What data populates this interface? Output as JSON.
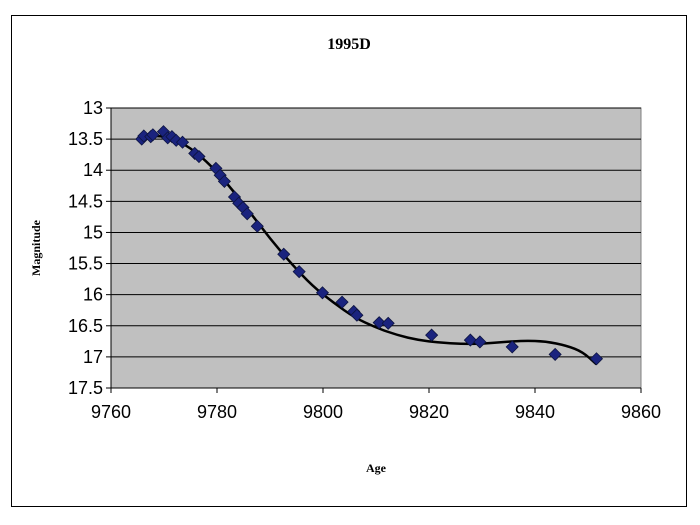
{
  "chart_data": {
    "type": "scatter",
    "title": "1995D",
    "xlabel": "Age",
    "ylabel": "Magnitude",
    "xlim": [
      9760,
      9860
    ],
    "ylim": [
      13,
      17.5
    ],
    "y_inverted": true,
    "xticks": [
      "9760",
      "9780",
      "9800",
      "9820",
      "9840",
      "9860"
    ],
    "yticks": [
      "13",
      "13.5",
      "14",
      "14.5",
      "15",
      "15.5",
      "16",
      "16.5",
      "17",
      "17.5"
    ],
    "grid": "horizontal",
    "plot_background": "#c0c0c0",
    "marker_color": "#1a237e",
    "trend_color": "#000000",
    "series": [
      {
        "points": [
          [
            9765.8,
            13.5
          ],
          [
            9766.2,
            13.45
          ],
          [
            9767.5,
            13.46
          ],
          [
            9767.9,
            13.43
          ],
          [
            9769.9,
            13.38
          ],
          [
            9770.7,
            13.48
          ],
          [
            9771.5,
            13.46
          ],
          [
            9772.3,
            13.52
          ],
          [
            9773.5,
            13.55
          ],
          [
            9775.8,
            13.73
          ],
          [
            9776.6,
            13.78
          ],
          [
            9779.8,
            13.97
          ],
          [
            9780.6,
            14.08
          ],
          [
            9781.4,
            14.18
          ],
          [
            9783.3,
            14.43
          ],
          [
            9784.1,
            14.53
          ],
          [
            9784.9,
            14.6
          ],
          [
            9785.7,
            14.7
          ],
          [
            9787.6,
            14.9
          ],
          [
            9792.6,
            15.35
          ],
          [
            9795.5,
            15.63
          ],
          [
            9799.9,
            15.97
          ],
          [
            9803.6,
            16.12
          ],
          [
            9805.8,
            16.27
          ],
          [
            9806.4,
            16.33
          ],
          [
            9810.6,
            16.45
          ],
          [
            9812.3,
            16.46
          ],
          [
            9820.5,
            16.65
          ],
          [
            9827.8,
            16.73
          ],
          [
            9829.6,
            16.76
          ],
          [
            9835.7,
            16.84
          ],
          [
            9843.8,
            16.96
          ],
          [
            9851.6,
            17.03
          ]
        ]
      }
    ],
    "trendline": [
      [
        9766,
        13.47
      ],
      [
        9770,
        13.44
      ],
      [
        9774,
        13.58
      ],
      [
        9778,
        13.85
      ],
      [
        9782,
        14.22
      ],
      [
        9786,
        14.65
      ],
      [
        9790,
        15.1
      ],
      [
        9794,
        15.5
      ],
      [
        9798,
        15.86
      ],
      [
        9802,
        16.13
      ],
      [
        9806,
        16.37
      ],
      [
        9810,
        16.53
      ],
      [
        9814,
        16.65
      ],
      [
        9818,
        16.73
      ],
      [
        9822,
        16.77
      ],
      [
        9826,
        16.79
      ],
      [
        9830,
        16.79
      ],
      [
        9834,
        16.76
      ],
      [
        9838,
        16.74
      ],
      [
        9842,
        16.75
      ],
      [
        9846,
        16.82
      ],
      [
        9849,
        16.92
      ],
      [
        9851.6,
        17.12
      ]
    ]
  }
}
